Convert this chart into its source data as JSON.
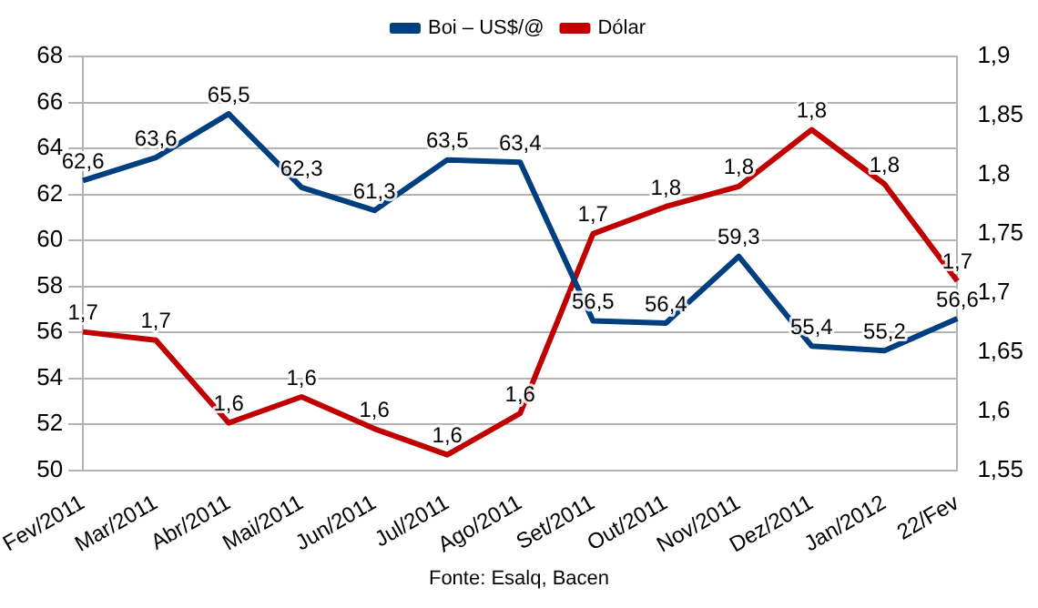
{
  "chart_data": {
    "type": "line",
    "categories": [
      "Fev/2011",
      "Mar/2011",
      "Abr/2011",
      "Mai/2011",
      "Jun/2011",
      "Jul/2011",
      "Ago/2011",
      "Set/2011",
      "Out/2011",
      "Nov/2011",
      "Dez/2011",
      "Jan/2012",
      "22/Fev"
    ],
    "series": [
      {
        "name": "Boi – US$/@",
        "color": "#003f7f",
        "values": [
          62.6,
          63.6,
          65.5,
          62.3,
          61.3,
          63.5,
          63.4,
          56.5,
          56.4,
          59.3,
          55.4,
          55.2,
          56.6
        ],
        "value_labels": [
          "62,6",
          "63,6",
          "65,5",
          "62,3",
          "61,3",
          "63,5",
          "63,4",
          "56,5",
          "56,4",
          "59,3",
          "55,4",
          "55,2",
          "56,6"
        ]
      },
      {
        "name": "Dólar",
        "color": "#c00000",
        "axis": "y2",
        "values": [
          1.667,
          1.66,
          1.59,
          1.612,
          1.585,
          1.563,
          1.598,
          1.75,
          1.773,
          1.79,
          1.838,
          1.792,
          1.71
        ],
        "value_labels": [
          "1,7",
          "1,7",
          "1,6",
          "1,6",
          "1,6",
          "1,6",
          "1,6",
          "1,7",
          "1,8",
          "1,8",
          "1,8",
          "1,8",
          "1,7"
        ]
      }
    ],
    "ylim": [
      50,
      68
    ],
    "yticks": [
      50,
      52,
      54,
      56,
      58,
      60,
      62,
      64,
      66,
      68
    ],
    "y2lim": [
      1.55,
      1.9
    ],
    "y2ticks": [
      {
        "value": 1.55,
        "label": "1,55"
      },
      {
        "value": 1.6,
        "label": "1,6"
      },
      {
        "value": 1.65,
        "label": "1,65"
      },
      {
        "value": 1.7,
        "label": "1,7"
      },
      {
        "value": 1.75,
        "label": "1,75"
      },
      {
        "value": 1.8,
        "label": "1,8"
      },
      {
        "value": 1.85,
        "label": "1,85"
      },
      {
        "value": 1.9,
        "label": "1,9"
      }
    ],
    "grid": "y",
    "legend": "top",
    "marker": "none",
    "annotations": [
      "Fonte: Esalq, Bacen"
    ]
  }
}
